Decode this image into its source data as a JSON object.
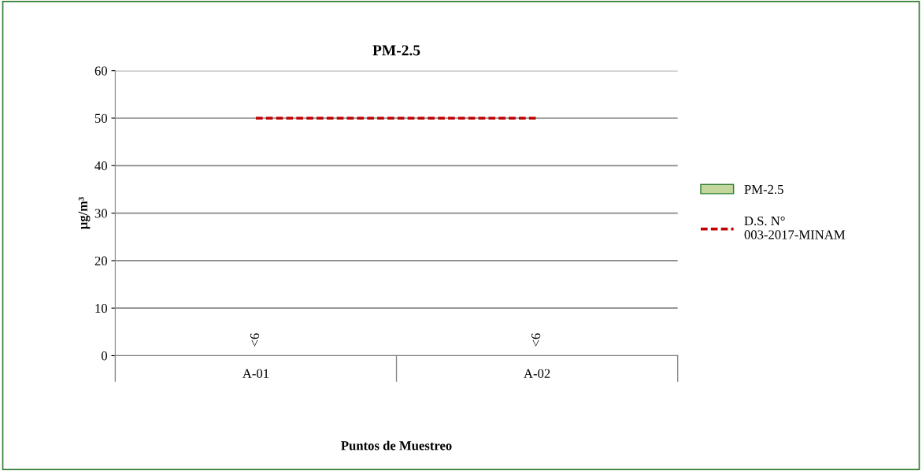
{
  "chart_data": {
    "type": "bar",
    "title": "PM-2.5",
    "xlabel": "Puntos de Muestreo",
    "ylabel": "µg/m³",
    "categories": [
      "A-01",
      "A-02"
    ],
    "series": [
      {
        "name": "PM-2.5",
        "type": "bar",
        "color": "#c3d69b",
        "values": [
          null,
          null
        ],
        "value_labels": [
          "<6",
          "<6"
        ]
      },
      {
        "name": "D.S. N° 003-2017-MINAM",
        "type": "line",
        "color": "#c00000",
        "line_style": "dashed",
        "values": [
          50,
          50
        ]
      }
    ],
    "ylim": [
      0,
      60
    ],
    "yticks": [
      0,
      10,
      20,
      30,
      40,
      50,
      60
    ],
    "grid": "y",
    "legend": "right"
  }
}
